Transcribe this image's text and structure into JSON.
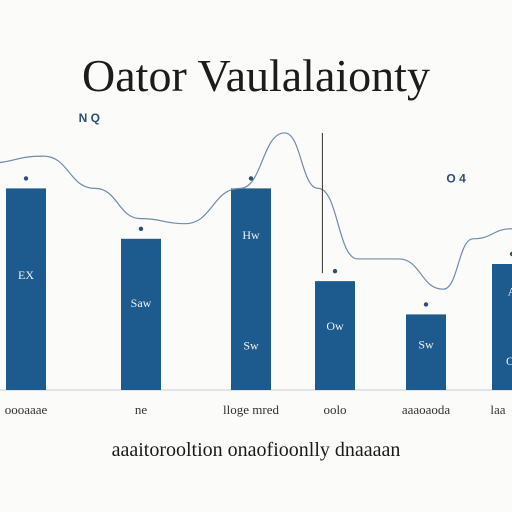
{
  "chart_data": {
    "type": "bar",
    "title": "Oator Vaulalaionty",
    "caption": "aaaitorooltion onaofioonlly dnaaaan",
    "categories": [
      "oooaaae",
      "ne",
      "lloge mred",
      "oolo",
      "aaaoaoda",
      "laa"
    ],
    "values": [
      200,
      150,
      200,
      108,
      75,
      125
    ],
    "bar_color": "#1d5a8e",
    "line_color": "#6f8caa",
    "ylim": [
      0,
      250
    ],
    "grid": false,
    "line_series": {
      "x": [
        -0.35,
        0.15,
        0.6,
        1.0,
        1.4,
        1.9,
        2.4,
        2.8,
        3.25,
        3.7,
        4.2,
        4.55,
        5.0,
        5.35
      ],
      "values": [
        225,
        232,
        200,
        170,
        165,
        200,
        255,
        200,
        130,
        130,
        100,
        150,
        160,
        150
      ]
    },
    "spike_x": 2.85,
    "top_labels": [
      {
        "text": "N Q",
        "x": 0.55,
        "y": 270
      },
      {
        "text": "O 4",
        "x": 4.35,
        "y": 210
      }
    ],
    "bar_labels": [
      {
        "index": 0,
        "texts": [
          "EX"
        ]
      },
      {
        "index": 1,
        "texts": [
          "Saw"
        ]
      },
      {
        "index": 2,
        "texts": [
          "Hw",
          "Sw"
        ]
      },
      {
        "index": 3,
        "texts": [
          "Ow"
        ]
      },
      {
        "index": 4,
        "texts": [
          "Sw"
        ]
      },
      {
        "index": 5,
        "texts": [
          "A",
          "Ol"
        ]
      }
    ]
  }
}
